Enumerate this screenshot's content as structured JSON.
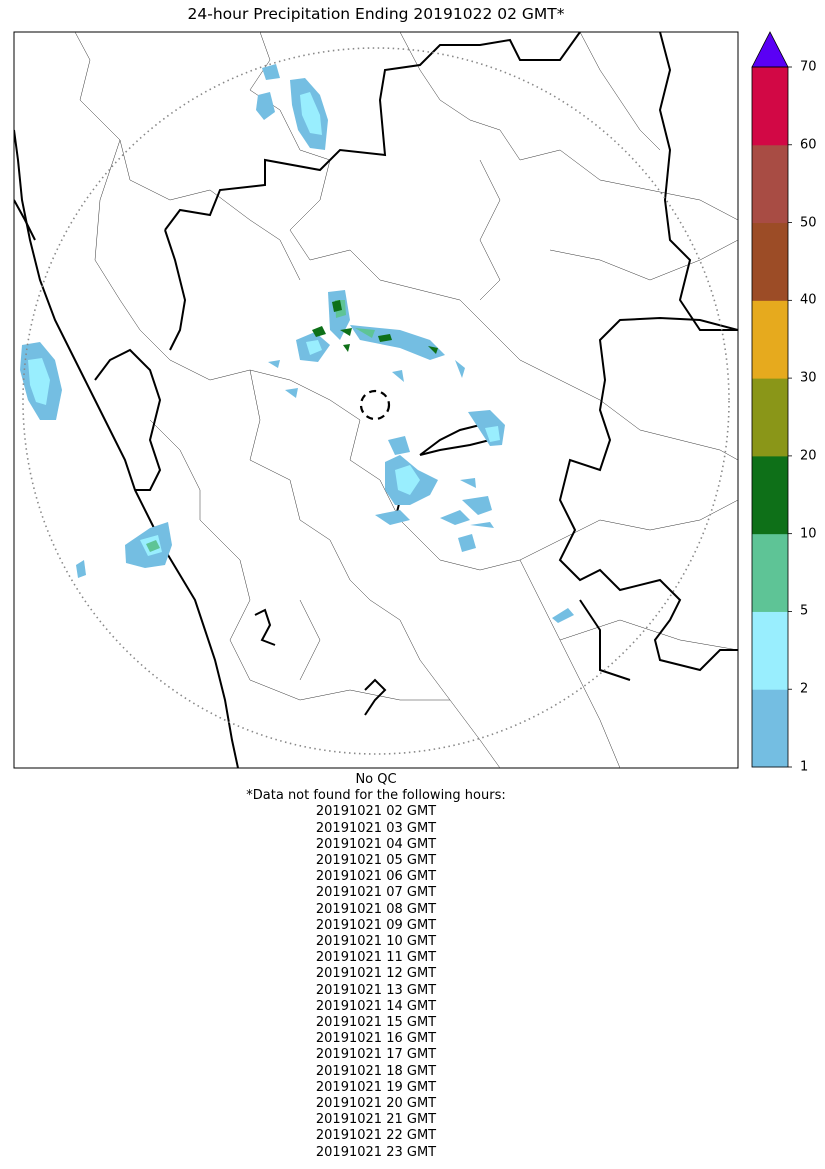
{
  "title": "24-hour Precipitation Ending 20191022 02 GMT*",
  "colorbar": {
    "levels": [
      1,
      2,
      5,
      10,
      20,
      30,
      40,
      50,
      60,
      70
    ],
    "tick_labels": [
      "1",
      "2",
      "5",
      "10",
      "20",
      "30",
      "40",
      "50",
      "60",
      "70"
    ],
    "colors": [
      "#74bee2",
      "#99eefe",
      "#5ec496",
      "#0e7018",
      "#8a9618",
      "#e6aa1e",
      "#9c4c26",
      "#a84c44",
      "#d20845"
    ],
    "extend_color": "#5a00f5"
  },
  "map": {
    "radar_center_marker": "dashed-circle",
    "range_ring": "dotted",
    "precip_colors": {
      "light": "#74bee2",
      "moderate": "#99eefe",
      "heavy": "#5ec496",
      "very_heavy": "#0e7018"
    }
  },
  "footer": {
    "qc": "No QC",
    "note": "*Data not found for the following hours:",
    "hours": [
      "20191021 02 GMT",
      "20191021 03 GMT",
      "20191021 04 GMT",
      "20191021 05 GMT",
      "20191021 06 GMT",
      "20191021 07 GMT",
      "20191021 08 GMT",
      "20191021 09 GMT",
      "20191021 10 GMT",
      "20191021 11 GMT",
      "20191021 12 GMT",
      "20191021 13 GMT",
      "20191021 14 GMT",
      "20191021 15 GMT",
      "20191021 16 GMT",
      "20191021 17 GMT",
      "20191021 18 GMT",
      "20191021 19 GMT",
      "20191021 20 GMT",
      "20191021 21 GMT",
      "20191021 22 GMT",
      "20191021 23 GMT"
    ]
  }
}
